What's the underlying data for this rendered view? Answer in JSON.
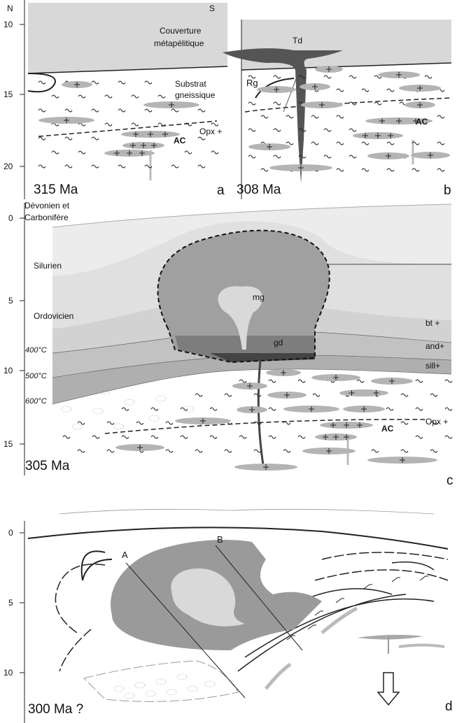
{
  "compass": {
    "north": "N",
    "south": "S"
  },
  "panels": [
    {
      "id": "a",
      "age": "315 Ma",
      "depth_ticks": [
        "10",
        "15",
        "20"
      ],
      "cover": [
        "Couverture",
        "métapélitique"
      ],
      "substrate": [
        "Substrat",
        "gneissique"
      ],
      "isograd": "Opx +",
      "intrusion": "AC"
    },
    {
      "id": "b",
      "age": "308 Ma",
      "dike": "Td",
      "rock": "Rg",
      "intrusion": "AC"
    },
    {
      "id": "c",
      "age": "305 Ma",
      "depth_ticks": [
        "0",
        "5",
        "10",
        "15"
      ],
      "strata": [
        [
          "Dévonien et",
          "Carbonifère"
        ],
        [
          "Silurien"
        ],
        [
          "Ordovicien"
        ]
      ],
      "temperatures": [
        "400°C",
        "500°C",
        "600°C"
      ],
      "pluton": [
        "mg",
        "gd"
      ],
      "isograds": [
        "bt +",
        "and+",
        "sill+",
        "Opx +"
      ],
      "intrusion": "AC"
    },
    {
      "id": "d",
      "age": "300 Ma ?",
      "depth_ticks": [
        "0",
        "5",
        "10"
      ],
      "sections": [
        "A",
        "B"
      ]
    }
  ]
}
